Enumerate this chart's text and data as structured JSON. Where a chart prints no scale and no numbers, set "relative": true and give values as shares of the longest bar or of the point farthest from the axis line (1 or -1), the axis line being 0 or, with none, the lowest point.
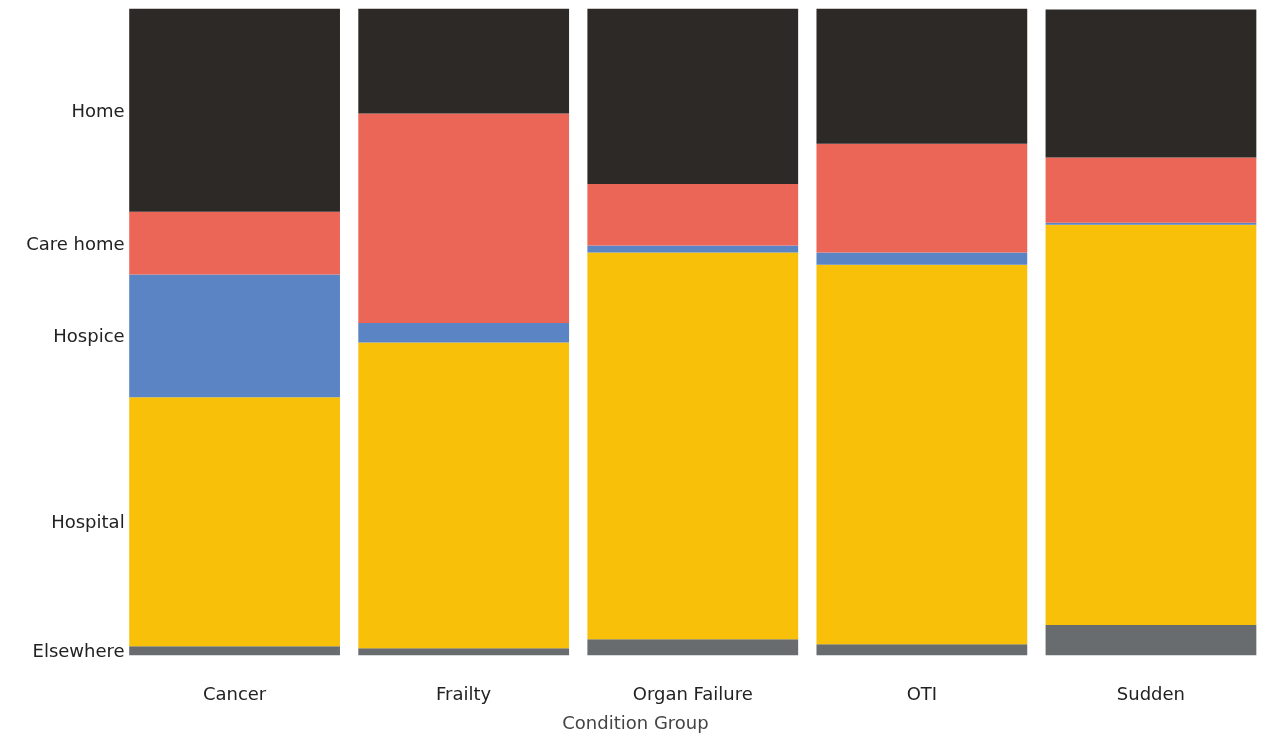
{
  "chart_data": {
    "type": "bar",
    "stacked": true,
    "relative": true,
    "xlabel": "Condition Group",
    "categories": [
      "Cancer",
      "Frailty",
      "Organ Failure",
      "OTI",
      "Sudden"
    ],
    "series": [
      {
        "name": "Elsewhere",
        "color": "#686c6e",
        "values": [
          0.014,
          0.011,
          0.025,
          0.017,
          0.047
        ]
      },
      {
        "name": "Hospital",
        "color": "#f8c009",
        "values": [
          0.385,
          0.473,
          0.598,
          0.587,
          0.619
        ]
      },
      {
        "name": "Hospice",
        "color": "#5a84c4",
        "values": [
          0.19,
          0.03,
          0.011,
          0.019,
          0.003
        ]
      },
      {
        "name": "Care home",
        "color": "#ec6657",
        "values": [
          0.097,
          0.324,
          0.095,
          0.168,
          0.101
        ]
      },
      {
        "name": "Home",
        "color": "#2d2926",
        "values": [
          0.314,
          0.162,
          0.271,
          0.209,
          0.229
        ]
      }
    ],
    "grid": false
  }
}
